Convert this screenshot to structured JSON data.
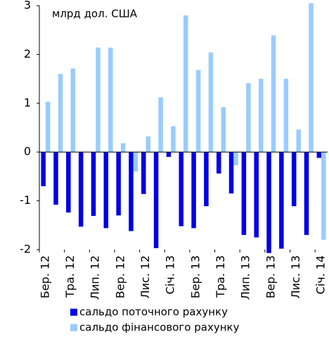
{
  "chart_data": {
    "type": "bar",
    "annotation": "млрд дол. США",
    "categories": [
      "Бер. 12",
      null,
      "Тра. 12",
      null,
      "Лип. 12",
      null,
      "Вер. 12",
      null,
      "Лис. 12",
      null,
      "Січ. 13",
      null,
      "Бер. 13",
      null,
      "Тра. 13",
      null,
      "Лип. 13",
      null,
      "Вер. 13",
      null,
      "Лис. 13",
      null,
      "Січ. 14"
    ],
    "series": [
      {
        "name": "сальдо поточного рахунку",
        "color": "#0000e6",
        "values": [
          -0.7,
          -1.08,
          -1.24,
          -1.53,
          -1.31,
          -1.56,
          -1.3,
          -1.62,
          -0.86,
          -1.97,
          -0.1,
          -1.52,
          -1.56,
          -1.11,
          -0.44,
          -0.85,
          -1.7,
          -1.75,
          -2.07,
          -1.98,
          -1.11,
          -1.7,
          -0.12
        ]
      },
      {
        "name": "сальдо фінансового рахунку",
        "color": "#99ccff",
        "values": [
          1.03,
          1.6,
          1.71,
          0,
          2.14,
          2.14,
          0.18,
          -0.4,
          0.32,
          1.12,
          0.53,
          2.8,
          1.68,
          2.04,
          0.92,
          -0.27,
          1.41,
          1.5,
          2.39,
          1.5,
          0.46,
          3.05,
          -1.8
        ]
      }
    ],
    "ylim": [
      -2,
      3
    ],
    "yticks": [
      -2,
      -1,
      0,
      1,
      2,
      3
    ]
  }
}
